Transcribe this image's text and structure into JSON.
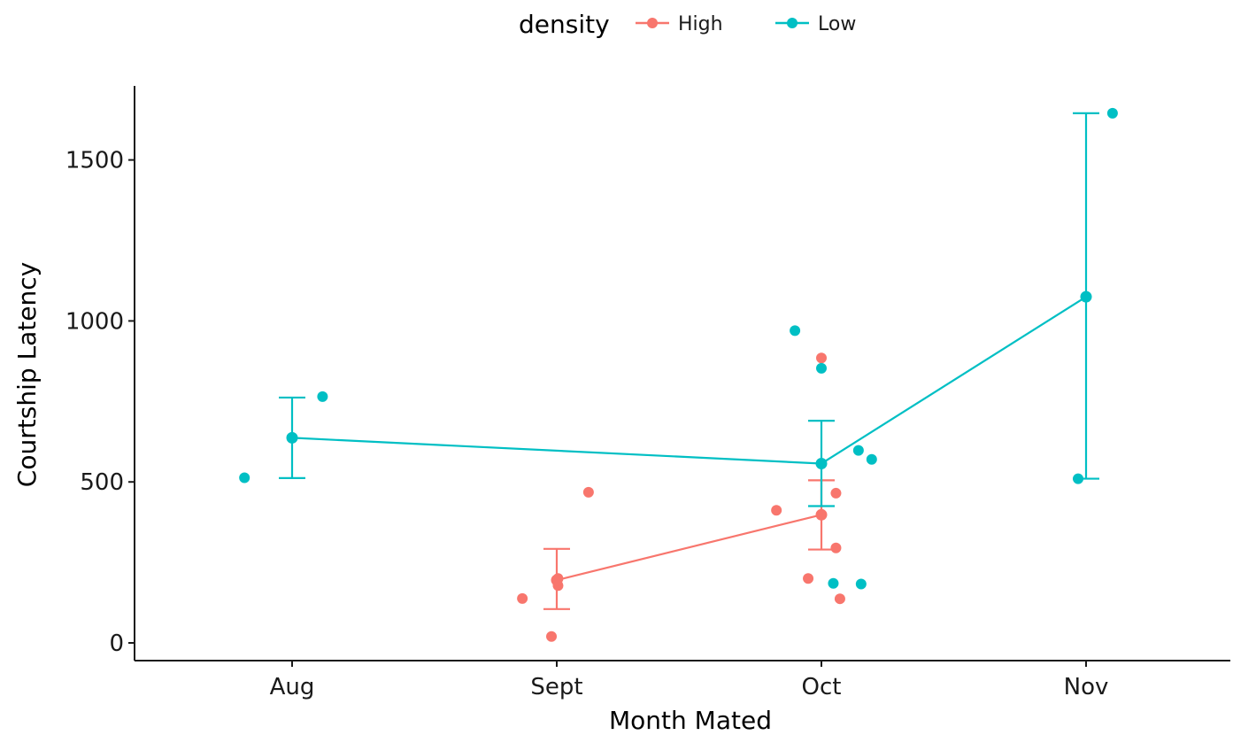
{
  "chart_data": {
    "type": "scatter",
    "xlabel": "Month Mated",
    "ylabel": "Courtship Latency",
    "categories": [
      "Aug",
      "Sept",
      "Oct",
      "Nov"
    ],
    "ylim": [
      -55,
      1730
    ],
    "yticks": [
      0,
      500,
      1000,
      1500
    ],
    "grid": false,
    "legend": {
      "title": "density",
      "position": "top",
      "entries": [
        "High",
        "Low"
      ]
    },
    "colors": {
      "High": "#F8766D",
      "Low": "#00BFC4"
    },
    "series": [
      {
        "name": "High",
        "summary": [
          {
            "x": "Sept",
            "mean": 195,
            "lower": 105,
            "upper": 292
          },
          {
            "x": "Oct",
            "mean": 398,
            "lower": 290,
            "upper": 505
          }
        ],
        "points": [
          {
            "x": "Sept",
            "offset": -0.13,
            "y": 138
          },
          {
            "x": "Sept",
            "offset": -0.02,
            "y": 20
          },
          {
            "x": "Sept",
            "offset": 0.005,
            "y": 200
          },
          {
            "x": "Sept",
            "offset": 0.005,
            "y": 178
          },
          {
            "x": "Sept",
            "offset": 0.12,
            "y": 468
          },
          {
            "x": "Oct",
            "offset": -0.17,
            "y": 412
          },
          {
            "x": "Oct",
            "offset": -0.05,
            "y": 200
          },
          {
            "x": "Oct",
            "offset": 0.0,
            "y": 885
          },
          {
            "x": "Oct",
            "offset": 0.0,
            "y": 398
          },
          {
            "x": "Oct",
            "offset": 0.055,
            "y": 465
          },
          {
            "x": "Oct",
            "offset": 0.055,
            "y": 295
          },
          {
            "x": "Oct",
            "offset": 0.07,
            "y": 137
          }
        ]
      },
      {
        "name": "Low",
        "summary": [
          {
            "x": "Aug",
            "mean": 637,
            "lower": 512,
            "upper": 762
          },
          {
            "x": "Oct",
            "mean": 557,
            "lower": 425,
            "upper": 690
          },
          {
            "x": "Nov",
            "mean": 1075,
            "lower": 510,
            "upper": 1645
          }
        ],
        "points": [
          {
            "x": "Aug",
            "offset": -0.18,
            "y": 513
          },
          {
            "x": "Aug",
            "offset": 0.115,
            "y": 765
          },
          {
            "x": "Oct",
            "offset": -0.1,
            "y": 970
          },
          {
            "x": "Oct",
            "offset": 0.0,
            "y": 853
          },
          {
            "x": "Oct",
            "offset": 0.045,
            "y": 185
          },
          {
            "x": "Oct",
            "offset": 0.14,
            "y": 598
          },
          {
            "x": "Oct",
            "offset": 0.15,
            "y": 183
          },
          {
            "x": "Oct",
            "offset": 0.19,
            "y": 570
          },
          {
            "x": "Nov",
            "offset": -0.03,
            "y": 510
          },
          {
            "x": "Nov",
            "offset": 0.1,
            "y": 1645
          }
        ]
      }
    ]
  }
}
